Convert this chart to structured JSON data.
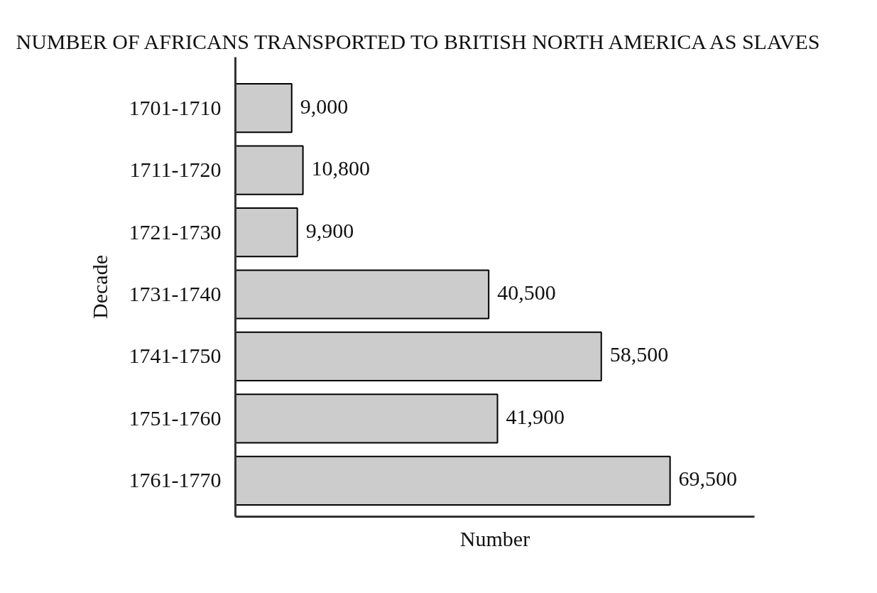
{
  "chart_data": {
    "type": "bar",
    "orientation": "horizontal",
    "title": "NUMBER OF AFRICANS TRANSPORTED TO BRITISH NORTH AMERICA AS SLAVES",
    "xlabel": "Number",
    "ylabel": "Decade",
    "categories": [
      "1701-1710",
      "1711-1720",
      "1721-1730",
      "1731-1740",
      "1741-1750",
      "1751-1760",
      "1761-1770"
    ],
    "values": [
      9000,
      10800,
      9900,
      40500,
      58500,
      41900,
      69500
    ],
    "color": "#cccccc",
    "value_labels": [
      "9,000",
      "10,800",
      "9,900",
      "40,500",
      "58,500",
      "41,900",
      "69,500"
    ],
    "xlim": [
      0,
      83000
    ],
    "tick_labels": "y"
  }
}
